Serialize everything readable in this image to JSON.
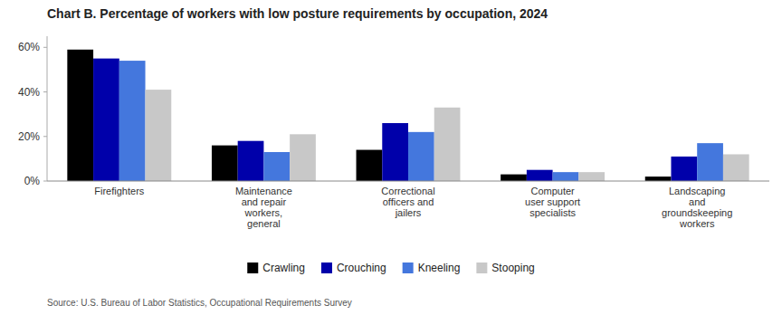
{
  "chart_data": {
    "type": "bar",
    "title": "Chart B. Percentage of workers with low posture requirements by occupation,  2024",
    "source": "Source: U.S. Bureau of Labor Statistics, Occupational Requirements Survey",
    "categories": [
      "Firefighters",
      "Maintenance\nand repair\nworkers,\ngeneral",
      "Correctional\nofficers and\njailers",
      "Computer\nuser support\nspecialists",
      "Landscaping\nand\ngroundskeeping\nworkers"
    ],
    "series": [
      {
        "name": "Crawling",
        "color": "#000000",
        "values": [
          0.59,
          0.16,
          0.14,
          0.03,
          0.02
        ]
      },
      {
        "name": "Crouching",
        "color": "#0000aa",
        "values": [
          0.55,
          0.18,
          0.26,
          0.05,
          0.11
        ]
      },
      {
        "name": "Kneeling",
        "color": "#4477dd",
        "values": [
          0.54,
          0.13,
          0.22,
          0.04,
          0.17
        ]
      },
      {
        "name": "Stooping",
        "color": "#c8c8c8",
        "values": [
          0.41,
          0.21,
          0.33,
          0.04,
          0.12
        ]
      }
    ],
    "ylim": [
      0,
      0.65
    ],
    "yticks": [
      {
        "value": 0.0,
        "label": "0%"
      },
      {
        "value": 0.2,
        "label": "20%"
      },
      {
        "value": 0.4,
        "label": "40%"
      },
      {
        "value": 0.6,
        "label": "60%"
      }
    ],
    "grid": false,
    "legend": "bottom"
  }
}
